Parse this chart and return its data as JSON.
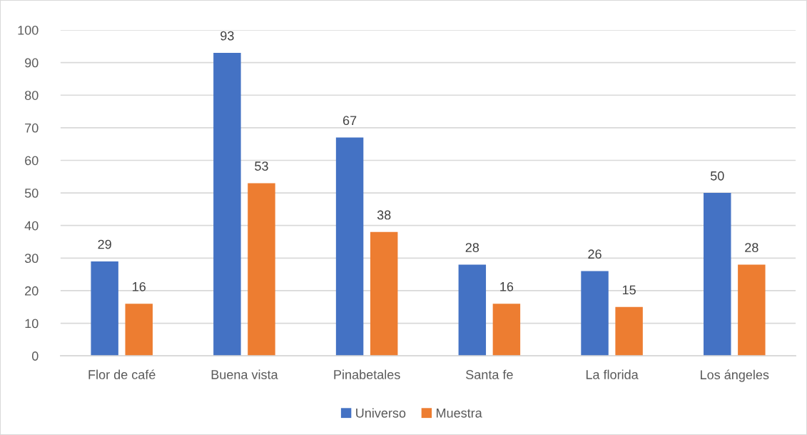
{
  "chart_data": {
    "type": "bar",
    "categories": [
      "Flor de café",
      "Buena vista",
      "Pinabetales",
      "Santa fe",
      "La florida",
      "Los ángeles"
    ],
    "series": [
      {
        "name": "Universo",
        "color": "#4472c4",
        "values": [
          29,
          93,
          67,
          28,
          26,
          50
        ]
      },
      {
        "name": "Muestra",
        "color": "#ed7d31",
        "values": [
          16,
          53,
          38,
          16,
          15,
          28
        ]
      }
    ],
    "ylim": [
      0,
      100
    ],
    "yticks": [
      0,
      10,
      20,
      30,
      40,
      50,
      60,
      70,
      80,
      90,
      100
    ],
    "grid": "y",
    "legend": "bottom",
    "data_labels": true
  }
}
